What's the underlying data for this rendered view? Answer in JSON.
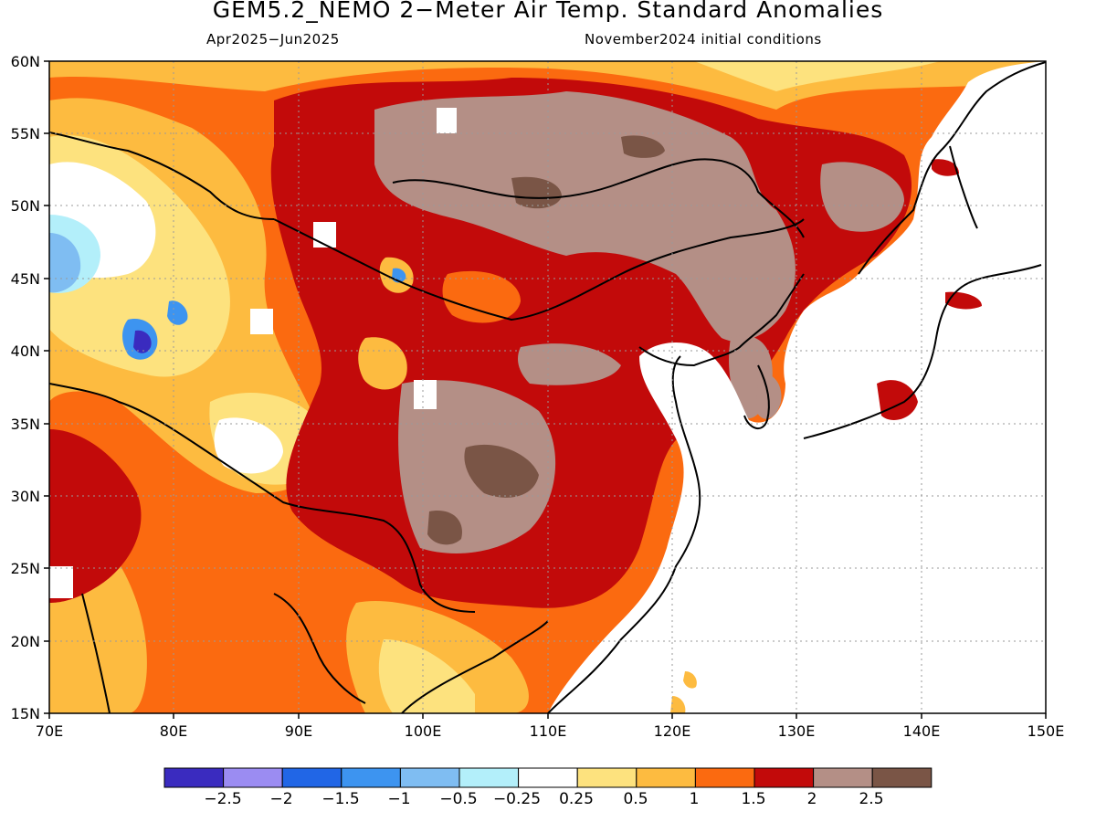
{
  "header": {
    "title": "GEM5.2_NEMO 2-Meter Air Temp. Standard Anomalies",
    "period": "Apr2025-Jun2025",
    "initial_conditions": "November2024 initial conditions"
  },
  "map": {
    "lat_labels": [
      "60N",
      "55N",
      "50N",
      "45N",
      "40N",
      "35N",
      "30N",
      "25N",
      "20N",
      "15N"
    ],
    "lon_labels": [
      "70E",
      "80E",
      "90E",
      "100E",
      "110E",
      "120E",
      "130E",
      "140E",
      "150E"
    ]
  },
  "colorbar": {
    "colors": [
      "#3a2bbf",
      "#9b8cf2",
      "#2166e6",
      "#3d94f0",
      "#7fbdf2",
      "#b3effa",
      "#ffffff",
      "#fde27e",
      "#fdbb40",
      "#fb6a10",
      "#c20a0a",
      "#b48f86",
      "#7a5546"
    ],
    "labels": [
      "-2.5",
      "-2",
      "-1.5",
      "-1",
      "-0.5",
      "-0.25",
      "0.25",
      "0.5",
      "1",
      "1.5",
      "2",
      "2.5"
    ]
  }
}
